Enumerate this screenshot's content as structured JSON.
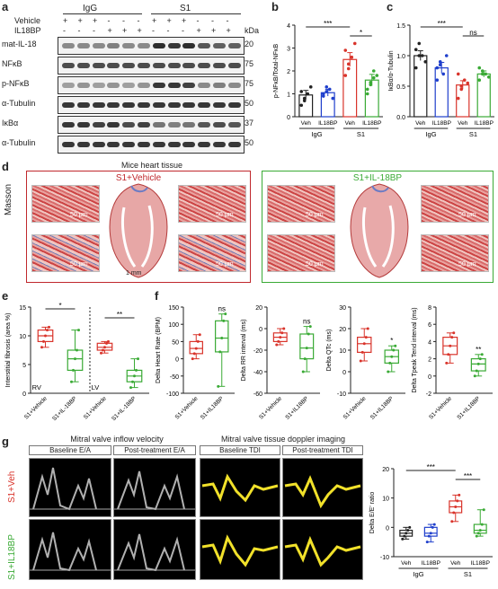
{
  "panels": {
    "a": "a",
    "b": "b",
    "c": "c",
    "d": "d",
    "e": "e",
    "f": "f",
    "g": "g"
  },
  "blot": {
    "group_igg": "IgG",
    "group_s1": "S1",
    "vehicle_label": "Vehicle",
    "il18bp_label": "IL18BP",
    "vehicle_marks": [
      "+",
      "+",
      "+",
      "-",
      "-",
      "-",
      "+",
      "+",
      "+",
      "-",
      "-",
      "-"
    ],
    "il18bp_marks": [
      "-",
      "-",
      "-",
      "+",
      "+",
      "+",
      "-",
      "-",
      "-",
      "+",
      "+",
      "+"
    ],
    "kda_label": "kDa",
    "rows": [
      {
        "label": "mat-IL-18",
        "kda": "20"
      },
      {
        "label": "NFκB",
        "kda": "75"
      },
      {
        "label": "p-NFκB",
        "kda": "75"
      },
      {
        "label": "α-Tubulin",
        "kda": "50"
      },
      {
        "label": "IκBα",
        "kda": "37"
      },
      {
        "label": "α-Tubulin",
        "kda": "50"
      }
    ],
    "caption": "Mice heart tissue"
  },
  "chart_data": [
    {
      "panel": "b",
      "type": "bar",
      "ylabel": "p-NFκB/Total-NFκB",
      "ylim": [
        0,
        4
      ],
      "yticks": [
        "0",
        "1",
        "2",
        "3",
        "4"
      ],
      "categories": [
        "Veh",
        "IL18BP",
        "Veh",
        "IL18BP"
      ],
      "groups": [
        "IgG",
        "S1"
      ],
      "values": [
        0.95,
        1.05,
        2.5,
        1.6
      ],
      "errors": [
        0.2,
        0.15,
        0.3,
        0.25
      ],
      "points": [
        [
          0.5,
          0.7,
          1.0,
          1.3,
          1.1,
          0.8
        ],
        [
          0.9,
          1.1,
          1.2,
          0.8,
          1.0,
          1.3
        ],
        [
          1.8,
          2.3,
          2.6,
          3.2,
          2.9,
          2.1
        ],
        [
          1.2,
          1.5,
          2.0,
          1.8,
          1.0,
          1.4,
          1.7
        ]
      ],
      "colors": [
        "#222222",
        "#1f3fcc",
        "#d9342b",
        "#3aaa35"
      ],
      "sig": [
        {
          "label": "***"
        },
        {
          "label": "*"
        }
      ]
    },
    {
      "panel": "c",
      "type": "bar",
      "ylabel": "IκBα/α-Tubulin",
      "ylim": [
        0,
        1.5
      ],
      "yticks": [
        "0.0",
        "0.5",
        "1.0",
        "1.5"
      ],
      "categories": [
        "Veh",
        "IL18BP",
        "Veh",
        "IL18BP"
      ],
      "groups": [
        "IgG",
        "S1"
      ],
      "values": [
        1.0,
        0.8,
        0.52,
        0.7
      ],
      "errors": [
        0.08,
        0.09,
        0.07,
        0.05
      ],
      "points": [
        [
          0.8,
          1.2,
          1.0,
          0.9,
          1.1,
          1.0
        ],
        [
          0.6,
          0.9,
          0.7,
          1.0,
          0.8,
          0.85
        ],
        [
          0.3,
          0.5,
          0.6,
          0.55,
          0.7,
          0.45
        ],
        [
          0.6,
          0.75,
          0.7,
          0.65,
          0.8,
          0.7
        ]
      ],
      "colors": [
        "#222222",
        "#1f3fcc",
        "#d9342b",
        "#3aaa35"
      ],
      "sig": [
        {
          "label": "***"
        },
        {
          "label": "ns"
        }
      ]
    },
    {
      "panel": "e",
      "type": "box",
      "ylabel": "Interstitial fibrosis (area %)",
      "ylim": [
        0,
        15
      ],
      "yticks": [
        "0",
        "5",
        "10",
        "15"
      ],
      "categories": [
        "S1+Vehicle",
        "S1+IL-18BP",
        "S1+Vehicle",
        "S1+IL-18BP"
      ],
      "regions": [
        "RV",
        "LV"
      ],
      "boxes": [
        [
          8,
          9,
          10,
          11,
          11.5
        ],
        [
          2,
          4,
          6,
          7.5,
          11
        ],
        [
          7,
          7.5,
          8,
          8.7,
          9
        ],
        [
          1,
          2,
          3,
          4,
          6
        ]
      ],
      "colors": [
        "#d9342b",
        "#3aaa35",
        "#d9342b",
        "#3aaa35"
      ],
      "sig": [
        {
          "label": "*"
        },
        {
          "label": "**"
        }
      ]
    },
    {
      "panel": "f1",
      "type": "box",
      "ylabel": "Delta Heart Rate (BPM)",
      "ylim": [
        -100,
        150
      ],
      "yticks": [
        "-100",
        "-50",
        "0",
        "50",
        "100",
        "150"
      ],
      "categories": [
        "S1+Vehicle",
        "S1+IL18BP"
      ],
      "boxes": [
        [
          0,
          15,
          30,
          50,
          70
        ],
        [
          -80,
          20,
          60,
          110,
          130
        ]
      ],
      "colors": [
        "#d9342b",
        "#3aaa35"
      ],
      "sig": [
        {
          "label": "ns"
        }
      ]
    },
    {
      "panel": "f2",
      "type": "box",
      "ylabel": "Delta RR interval (ms)",
      "ylim": [
        -60,
        20
      ],
      "yticks": [
        "-60",
        "-40",
        "-20",
        "0",
        "20"
      ],
      "categories": [
        "S1+Vehicle",
        "S1+IL18BP"
      ],
      "boxes": [
        [
          -15,
          -12,
          -8,
          -4,
          0
        ],
        [
          -40,
          -28,
          -18,
          -5,
          2
        ]
      ],
      "colors": [
        "#d9342b",
        "#3aaa35"
      ],
      "sig": [
        {
          "label": "ns"
        }
      ]
    },
    {
      "panel": "f3",
      "type": "box",
      "ylabel": "Delta QTc (ms)",
      "ylim": [
        -10,
        30
      ],
      "yticks": [
        "-10",
        "0",
        "10",
        "20",
        "30"
      ],
      "categories": [
        "S1+Vehicle",
        "S1+IL18BP"
      ],
      "boxes": [
        [
          5,
          9,
          13,
          16,
          20
        ],
        [
          0,
          4,
          7,
          10,
          12
        ]
      ],
      "colors": [
        "#d9342b",
        "#3aaa35"
      ],
      "sig": [
        {
          "label": "*"
        }
      ]
    },
    {
      "panel": "f4",
      "type": "box",
      "ylabel": "Delta Tpeak Tend interval (ms)",
      "ylim": [
        -2,
        8
      ],
      "yticks": [
        "-2",
        "0",
        "2",
        "4",
        "6",
        "8"
      ],
      "categories": [
        "S1+Vehicle",
        "S1+IL18BP"
      ],
      "boxes": [
        [
          1.5,
          2.5,
          3.5,
          4.5,
          5
        ],
        [
          0,
          0.6,
          1.4,
          2.0,
          2.5
        ]
      ],
      "colors": [
        "#d9342b",
        "#3aaa35"
      ],
      "sig": [
        {
          "label": "**"
        }
      ]
    },
    {
      "panel": "g",
      "type": "box",
      "ylabel": "Delta E/E' ratio",
      "ylim": [
        -10,
        20
      ],
      "yticks": [
        "-10",
        "0",
        "10",
        "20"
      ],
      "categories": [
        "Veh",
        "IL18BP",
        "Veh",
        "IL18BP"
      ],
      "groups": [
        "IgG",
        "S1"
      ],
      "boxes": [
        [
          -4,
          -3,
          -2,
          -1,
          0
        ],
        [
          -5,
          -3,
          -2,
          0,
          1
        ],
        [
          2,
          5,
          7,
          9,
          11
        ],
        [
          -3,
          -2,
          -1,
          1,
          6
        ]
      ],
      "colors": [
        "#222222",
        "#1f3fcc",
        "#d9342b",
        "#3aaa35"
      ],
      "sig": [
        {
          "label": "***"
        },
        {
          "label": "***"
        }
      ]
    }
  ],
  "masson": {
    "left_title": "S1+Vehicle",
    "right_title": "S1+IL-18BP",
    "side_label": "Masson",
    "scale_small": "50 μm",
    "scale_big": "1 mm"
  },
  "echo": {
    "mitral_title": "Mitral valve inflow velocity",
    "tdi_title": "Mitral valve tissue doppler imaging",
    "headers": [
      "Baseline E/A",
      "Post-treatment E/A",
      "Baseline TDI",
      "Post-treatment TDI"
    ],
    "row_labels": [
      "S1+Veh",
      "S1+IL18BP"
    ]
  }
}
